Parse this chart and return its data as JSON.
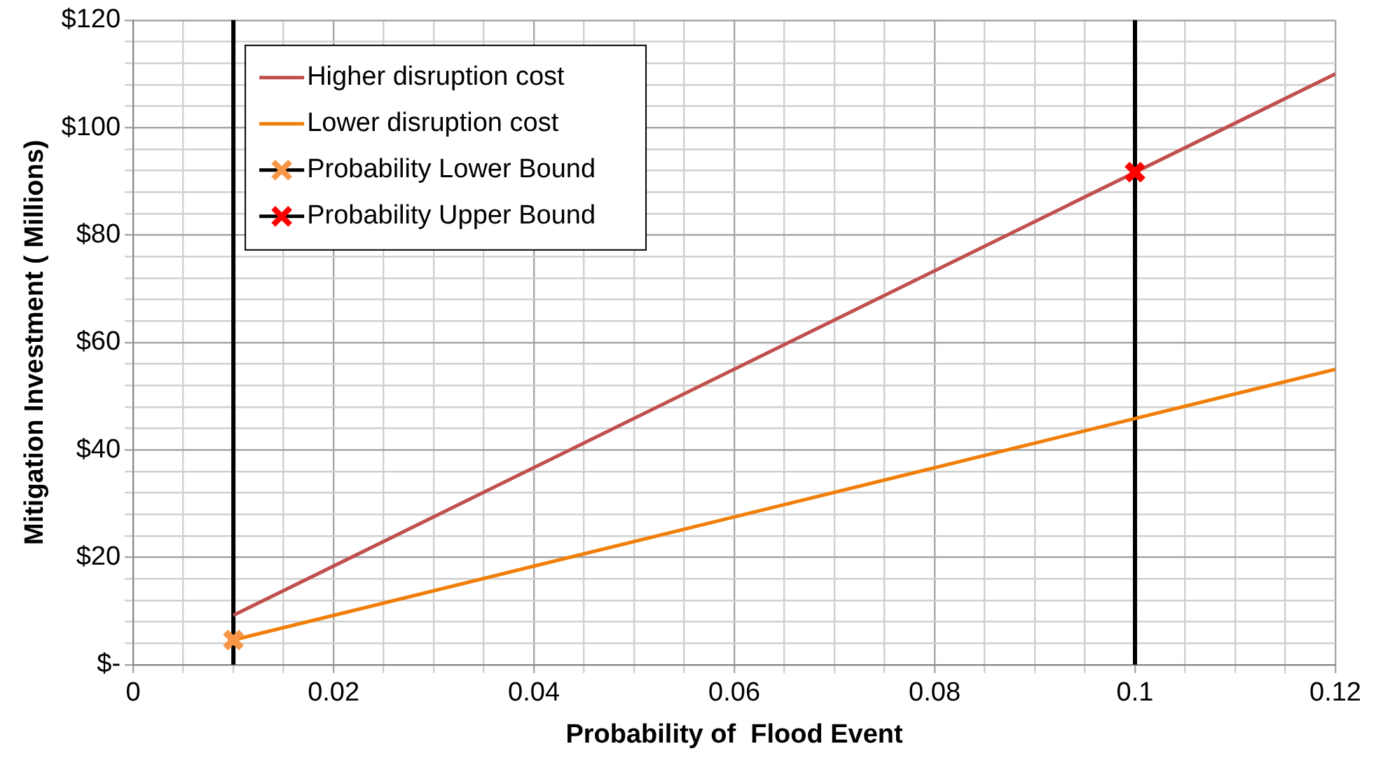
{
  "chart_data": {
    "type": "line",
    "xlabel": "Probability of  Flood Event",
    "ylabel": "Mitigation Investment ( Millions)",
    "xlim": [
      0,
      0.12
    ],
    "ylim": [
      0,
      120
    ],
    "xticks": [
      0,
      {
        "value": 0.005,
        "label": null
      },
      0.02,
      {
        "value": 0.015,
        "label": null
      },
      {
        "value": 0.01,
        "label": null
      },
      {
        "value": 0.025,
        "label": null
      },
      {
        "value": 0.03,
        "label": null
      },
      {
        "value": 0.035,
        "label": null
      },
      0.04,
      {
        "value": 0.045,
        "label": null
      },
      {
        "value": 0.05,
        "label": null
      },
      {
        "value": 0.055,
        "label": null
      },
      0.06,
      {
        "value": 0.065,
        "label": null
      },
      {
        "value": 0.07,
        "label": null
      },
      {
        "value": 0.075,
        "label": null
      },
      0.08,
      {
        "value": 0.085,
        "label": null
      },
      {
        "value": 0.09,
        "label": null
      },
      {
        "value": 0.095,
        "label": null
      },
      0.1,
      {
        "value": 0.105,
        "label": null
      },
      {
        "value": 0.11,
        "label": null
      },
      {
        "value": 0.115,
        "label": null
      },
      0.12
    ],
    "yticks": [
      {
        "value": 0,
        "label": "$-"
      },
      {
        "value": 4,
        "label": null
      },
      {
        "value": 8,
        "label": null
      },
      {
        "value": 12,
        "label": null
      },
      {
        "value": 16,
        "label": null
      },
      {
        "value": 20,
        "label": "$20"
      },
      {
        "value": 24,
        "label": null
      },
      {
        "value": 28,
        "label": null
      },
      {
        "value": 32,
        "label": null
      },
      {
        "value": 36,
        "label": null
      },
      {
        "value": 40,
        "label": "$40"
      },
      {
        "value": 44,
        "label": null
      },
      {
        "value": 48,
        "label": null
      },
      {
        "value": 52,
        "label": null
      },
      {
        "value": 56,
        "label": null
      },
      {
        "value": 60,
        "label": "$60"
      },
      {
        "value": 64,
        "label": null
      },
      {
        "value": 68,
        "label": null
      },
      {
        "value": 72,
        "label": null
      },
      {
        "value": 76,
        "label": null
      },
      {
        "value": 80,
        "label": "$80"
      },
      {
        "value": 84,
        "label": null
      },
      {
        "value": 88,
        "label": null
      },
      {
        "value": 92,
        "label": null
      },
      {
        "value": 96,
        "label": null
      },
      {
        "value": 100,
        "label": "$100"
      },
      {
        "value": 104,
        "label": null
      },
      {
        "value": 108,
        "label": null
      },
      {
        "value": 112,
        "label": null
      },
      {
        "value": 116,
        "label": null
      },
      {
        "value": 120,
        "label": "$120"
      }
    ],
    "grid": true,
    "legend": "top left",
    "line_style": "solid",
    "series": [
      {
        "name": "Higher disruption cost",
        "color": "#c0504d",
        "x": [
          0.01,
          0.12
        ],
        "values": [
          9.2,
          110
        ],
        "marker": "none"
      },
      {
        "name": "Lower disruption cost",
        "color": "#f07f09",
        "x": [
          0.01,
          0.12
        ],
        "values": [
          4.6,
          55
        ],
        "marker": "none"
      },
      {
        "name": "Probability Lower Bound",
        "type": "scatter",
        "color": "#f79646",
        "x": [
          0.01
        ],
        "values": [
          4.6
        ],
        "errors": [
          [
            0,
            120
          ]
        ],
        "marker": "cross"
      },
      {
        "name": "Probability Upper Bound",
        "type": "scatter",
        "color": "#ff0000",
        "x": [
          0.1
        ],
        "values": [
          91.7
        ],
        "errors": [
          [
            0,
            120
          ]
        ],
        "marker": "cross"
      }
    ]
  }
}
